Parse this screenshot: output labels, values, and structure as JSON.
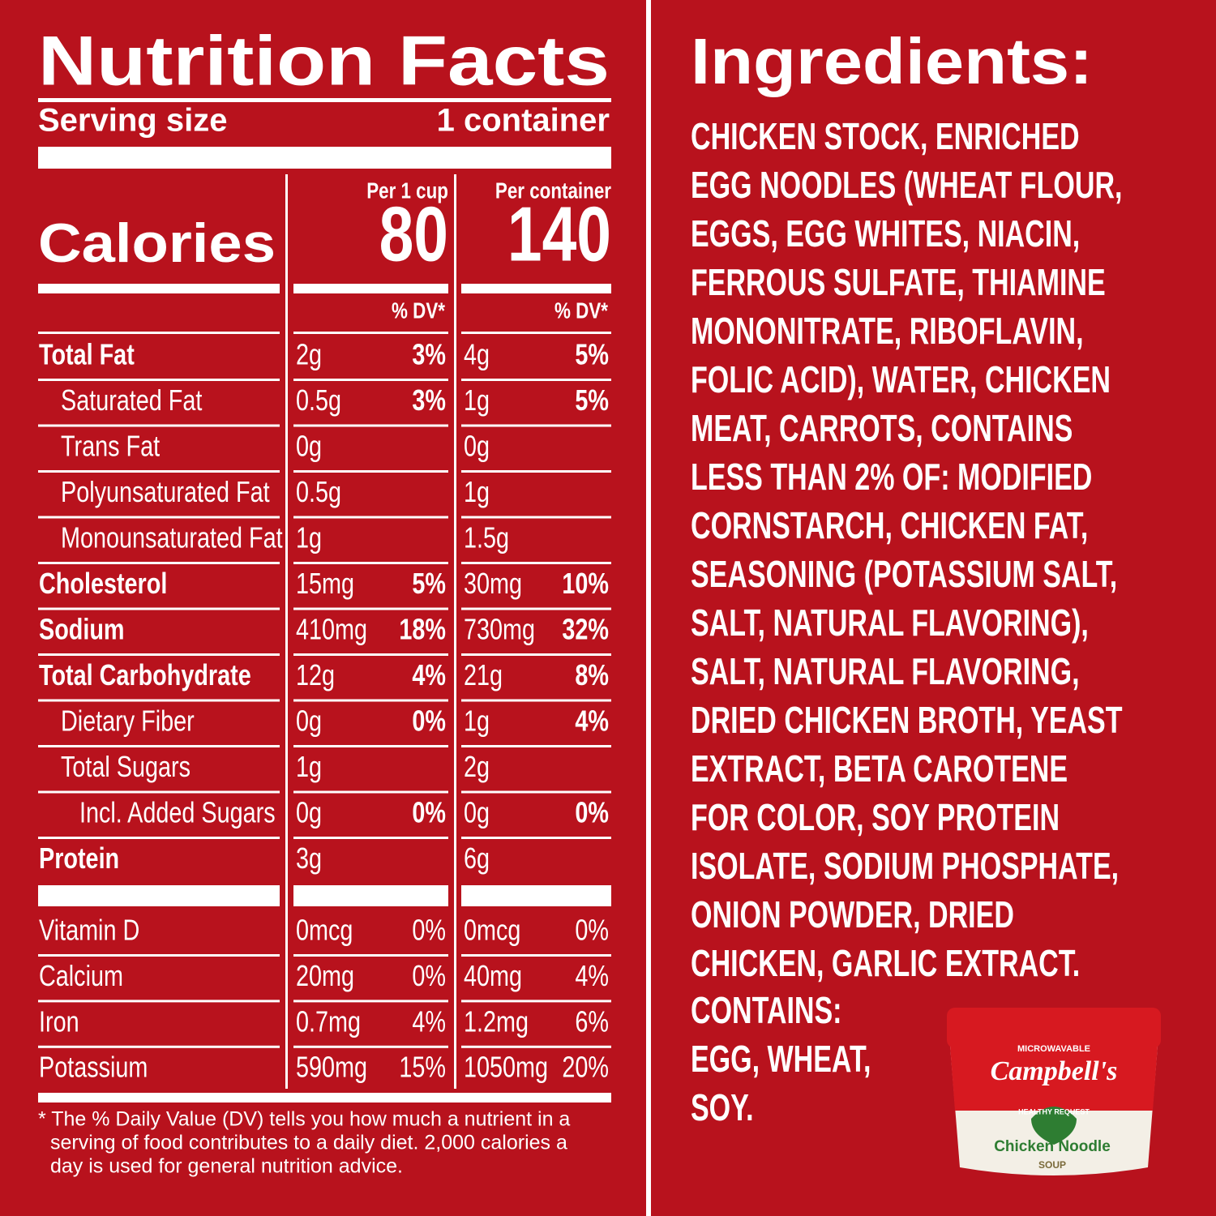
{
  "nutrition": {
    "title": "Nutrition Facts",
    "serving_label": "Serving size",
    "serving_value": "1 container",
    "calories_label": "Calories",
    "columns": [
      {
        "header": "Per 1 cup",
        "calories": "80",
        "dv_label": "% DV*"
      },
      {
        "header": "Per container",
        "calories": "140",
        "dv_label": "% DV*"
      }
    ],
    "rows": [
      [
        "Total Fat",
        "2g",
        "3%",
        "4g",
        "5%"
      ],
      [
        "Saturated Fat",
        "0.5g",
        "3%",
        "1g",
        "5%"
      ],
      [
        "Trans Fat",
        "0g",
        null,
        "0g",
        null
      ],
      [
        "Polyunsaturated Fat",
        "0.5g",
        null,
        "1g",
        null
      ],
      [
        "Monounsaturated Fat",
        "1g",
        null,
        "1.5g",
        null
      ],
      [
        "Cholesterol",
        "15mg",
        "5%",
        "30mg",
        "10%"
      ],
      [
        "Sodium",
        "410mg",
        "18%",
        "730mg",
        "32%"
      ],
      [
        "Total Carbohydrate",
        "12g",
        "4%",
        "21g",
        "8%"
      ],
      [
        "Dietary Fiber",
        "0g",
        "0%",
        "1g",
        "4%"
      ],
      [
        "Total Sugars",
        "1g",
        null,
        "2g",
        null
      ],
      [
        "Incl. Added Sugars",
        "0g",
        "0%",
        "0g",
        "0%"
      ],
      [
        "Protein",
        "3g",
        null,
        "6g",
        null
      ]
    ],
    "vitamins": [
      [
        "Vitamin D",
        "0mcg",
        "0%",
        "0mcg",
        "0%"
      ],
      [
        "Calcium",
        "20mg",
        "0%",
        "40mg",
        "4%"
      ],
      [
        "Iron",
        "0.7mg",
        "4%",
        "1.2mg",
        "6%"
      ],
      [
        "Potassium",
        "590mg",
        "15%",
        "1050mg",
        "20%"
      ]
    ],
    "footnote": [
      "* The % Daily Value (DV) tells you how much a nutrient in a",
      "serving of food contributes to a daily diet. 2,000 calories a",
      "day is used for general nutrition advice."
    ]
  },
  "ingredients": {
    "title": "Ingredients:",
    "lines": [
      "CHICKEN STOCK, ENRICHED",
      "EGG NOODLES (WHEAT FLOUR,",
      "EGGS, EGG WHITES, NIACIN,",
      "FERROUS SULFATE, THIAMINE",
      "MONONITRATE, RIBOFLAVIN,",
      "FOLIC ACID), WATER, CHICKEN",
      "MEAT, CARROTS, CONTAINS",
      "LESS THAN 2% OF: MODIFIED",
      "CORNSTARCH, CHICKEN FAT,",
      "SEASONING (POTASSIUM SALT,",
      "SALT, NATURAL FLAVORING),",
      "SALT, NATURAL FLAVORING,",
      "DRIED CHICKEN BROTH, YEAST",
      "EXTRACT, BETA CAROTENE",
      "FOR COLOR, SOY PROTEIN",
      "ISOLATE, SODIUM PHOSPHATE,",
      "ONION POWDER, DRIED",
      "CHICKEN, GARLIC EXTRACT."
    ],
    "contains": [
      "CONTAINS:",
      "EGG, WHEAT,",
      "SOY."
    ]
  },
  "product": {
    "tag": "MICROWAVABLE",
    "brand": "Campbell's",
    "badge": "HEALTHY REQUEST",
    "name": "Chicken Noodle",
    "kind": "SOUP"
  }
}
